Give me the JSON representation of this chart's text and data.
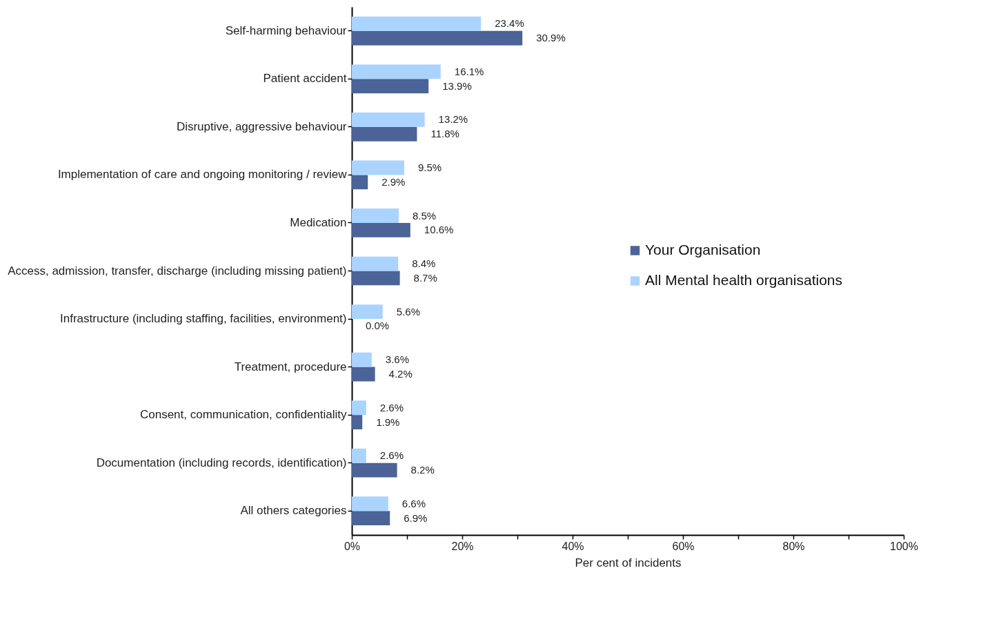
{
  "chart_data": {
    "type": "bar",
    "orientation": "horizontal",
    "xlabel": "Per cent of incidents",
    "categories": [
      "Self-harming behaviour",
      "Patient accident",
      "Disruptive, aggressive behaviour",
      "Implementation of care and ongoing monitoring / review",
      "Medication",
      "Access, admission, transfer, discharge (including missing patient)",
      "Infrastructure (including staffing, facilities, environment)",
      "Treatment, procedure",
      "Consent, communication, confidentiality",
      "Documentation (including records, identification)",
      "All others categories"
    ],
    "series": [
      {
        "name": "Your Organisation",
        "color": "#4b6397",
        "values": [
          30.9,
          13.9,
          11.8,
          2.9,
          10.6,
          8.7,
          0.0,
          4.2,
          1.9,
          8.2,
          6.9
        ],
        "value_labels": [
          "30.9%",
          "13.9%",
          "11.8%",
          "2.9%",
          "10.6%",
          "8.7%",
          "0.0%",
          "4.2%",
          "1.9%",
          "8.2%",
          "6.9%"
        ]
      },
      {
        "name": "All Mental health organisations",
        "color": "#aad4ff",
        "values": [
          23.4,
          16.1,
          13.2,
          9.5,
          8.5,
          8.4,
          5.6,
          3.6,
          2.6,
          2.6,
          6.6
        ],
        "value_labels": [
          "23.4%",
          "16.1%",
          "13.2%",
          "9.5%",
          "8.5%",
          "8.4%",
          "5.6%",
          "3.6%",
          "2.6%",
          "2.6%",
          "6.6%"
        ]
      }
    ],
    "xlim": [
      0,
      100
    ],
    "xticks": [
      {
        "value": 0,
        "label": "0%"
      },
      {
        "value": 10,
        "label": null
      },
      {
        "value": 20,
        "label": "20%"
      },
      {
        "value": 30,
        "label": null
      },
      {
        "value": 40,
        "label": "40%"
      },
      {
        "value": 50,
        "label": null
      },
      {
        "value": 60,
        "label": "60%"
      },
      {
        "value": 70,
        "label": null
      },
      {
        "value": 80,
        "label": "80%"
      },
      {
        "value": 90,
        "label": null
      },
      {
        "value": 100,
        "label": "100%"
      }
    ],
    "grid": false,
    "legend": "right"
  }
}
